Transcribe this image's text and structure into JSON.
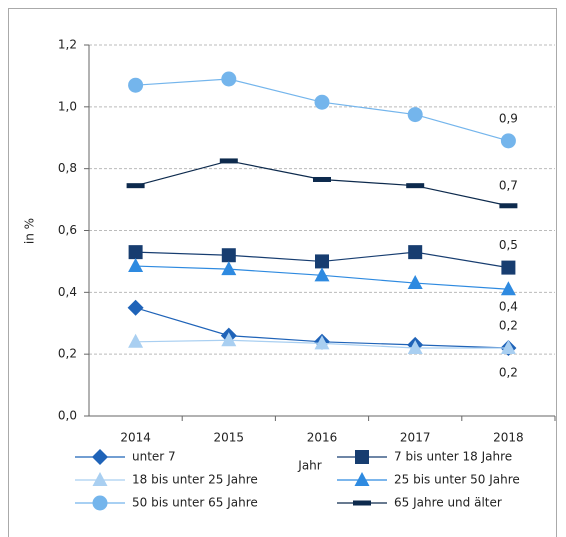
{
  "chart_data": {
    "type": "line",
    "x_label": "Jahr",
    "y_label": "in %",
    "categories": [
      "2014",
      "2015",
      "2016",
      "2017",
      "2018"
    ],
    "ylim": [
      0,
      1.2
    ],
    "yticks": [
      {
        "value": 0,
        "label": "0,0"
      },
      {
        "value": 0.2,
        "label": "0,2"
      },
      {
        "value": 0.4,
        "label": "0,4"
      },
      {
        "value": 0.6,
        "label": "0,6"
      },
      {
        "value": 0.8,
        "label": "0,8"
      },
      {
        "value": 1.0,
        "label": "1,0"
      },
      {
        "value": 1.2,
        "label": "1,2"
      }
    ],
    "grid": true,
    "series": [
      {
        "name": "unter 7",
        "color": "#1f63b8",
        "marker": "diamond",
        "values": [
          0.35,
          0.26,
          0.24,
          0.23,
          0.22
        ],
        "value_labels": [
          null,
          null,
          null,
          null,
          "0,2"
        ]
      },
      {
        "name": "7 bis unter 18 Jahre",
        "color": "#173d70",
        "marker": "square",
        "values": [
          0.53,
          0.52,
          0.5,
          0.53,
          0.48
        ],
        "value_labels": [
          null,
          null,
          null,
          null,
          "0,5"
        ]
      },
      {
        "name": "18 bis unter 25 Jahre",
        "color": "#a9cff1",
        "marker": "triangle",
        "values": [
          0.24,
          0.245,
          0.235,
          0.22,
          0.22
        ],
        "value_labels": [
          null,
          null,
          null,
          null,
          "0,2"
        ]
      },
      {
        "name": "25 bis unter 50 Jahre",
        "color": "#2e8ae0",
        "marker": "triangle",
        "values": [
          0.485,
          0.475,
          0.455,
          0.43,
          0.41
        ],
        "value_labels": [
          null,
          null,
          null,
          null,
          "0,4"
        ]
      },
      {
        "name": "50 bis unter 65 Jahre",
        "color": "#74b5ec",
        "marker": "circle",
        "values": [
          1.07,
          1.09,
          1.015,
          0.975,
          0.89
        ],
        "value_labels": [
          null,
          null,
          null,
          null,
          "0,9"
        ]
      },
      {
        "name": "65 Jahre und älter",
        "color": "#0d2a4d",
        "marker": "dash",
        "values": [
          0.745,
          0.825,
          0.765,
          0.745,
          0.68
        ],
        "value_labels": [
          null,
          null,
          null,
          null,
          "0,7"
        ]
      }
    ]
  }
}
